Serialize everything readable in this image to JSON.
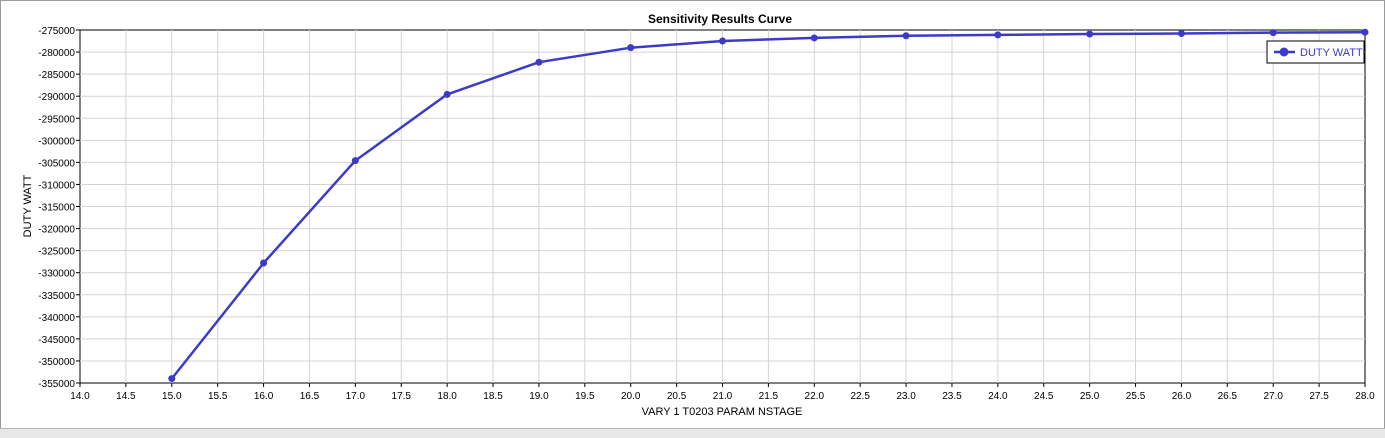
{
  "chart_data": {
    "type": "line",
    "title": "Sensitivity Results Curve",
    "xlabel": "VARY   1 T0203 PARAM NSTAGE",
    "ylabel": "DUTY WATT",
    "xlim": [
      14.0,
      28.0
    ],
    "ylim": [
      -355000,
      -275000
    ],
    "x_ticks": [
      "14.0",
      "14.5",
      "15.0",
      "15.5",
      "16.0",
      "16.5",
      "17.0",
      "17.5",
      "18.0",
      "18.5",
      "19.0",
      "19.5",
      "20.0",
      "20.5",
      "21.0",
      "21.5",
      "22.0",
      "22.5",
      "23.0",
      "23.5",
      "24.0",
      "24.5",
      "25.0",
      "25.5",
      "26.0",
      "26.5",
      "27.0",
      "27.5",
      "28.0"
    ],
    "y_ticks": [
      "-275000",
      "-280000",
      "-285000",
      "-290000",
      "-295000",
      "-300000",
      "-305000",
      "-310000",
      "-315000",
      "-320000",
      "-325000",
      "-330000",
      "-335000",
      "-340000",
      "-345000",
      "-350000",
      "-355000"
    ],
    "grid": true,
    "legend_position": "top-right",
    "series": [
      {
        "name": "DUTY WATT",
        "color": "#3b3bc8",
        "x": [
          15,
          16,
          17,
          18,
          19,
          20,
          21,
          22,
          23,
          24,
          25,
          26,
          27,
          28
        ],
        "y": [
          -354000,
          -327800,
          -304600,
          -289600,
          -282300,
          -279000,
          -277500,
          -276800,
          -276300,
          -276100,
          -275900,
          -275800,
          -275600,
          -275500
        ]
      }
    ]
  }
}
